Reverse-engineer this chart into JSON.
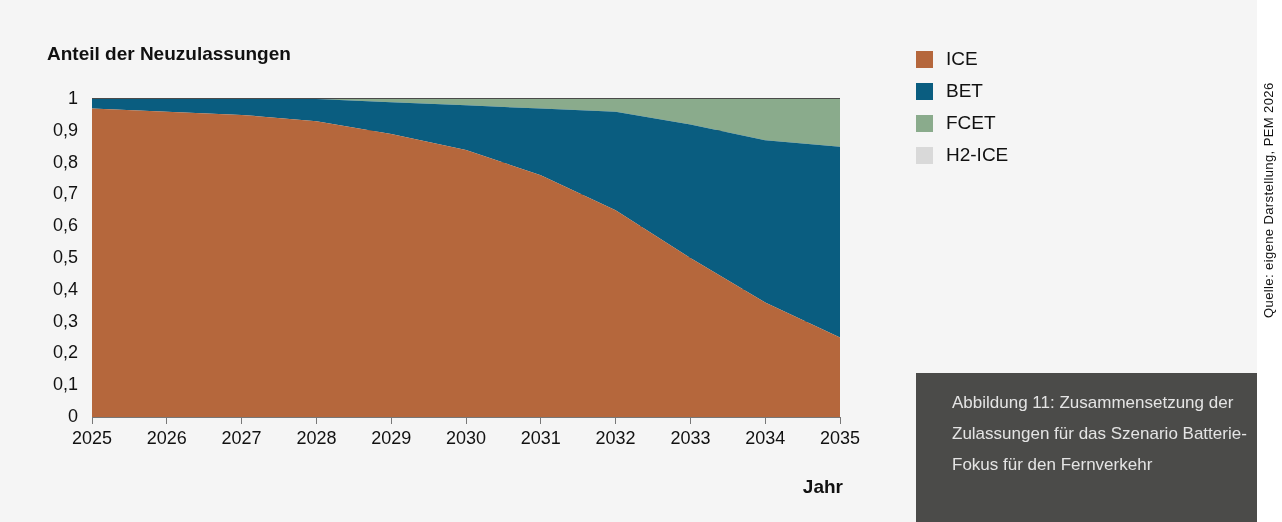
{
  "chart_data": {
    "type": "area",
    "title": "Anteil der Neuzulassungen",
    "xlabel": "Jahr",
    "categories": [
      "2025",
      "2026",
      "2027",
      "2028",
      "2029",
      "2030",
      "2031",
      "2032",
      "2033",
      "2034",
      "2035"
    ],
    "stacked": true,
    "series": [
      {
        "name": "ICE",
        "color": "#b5673c",
        "values": [
          0.97,
          0.96,
          0.95,
          0.93,
          0.89,
          0.84,
          0.76,
          0.65,
          0.5,
          0.36,
          0.25
        ]
      },
      {
        "name": "BET",
        "color": "#0a5d80",
        "values": [
          0.03,
          0.04,
          0.05,
          0.07,
          0.1,
          0.14,
          0.21,
          0.31,
          0.42,
          0.51,
          0.6
        ]
      },
      {
        "name": "FCET",
        "color": "#8aab8c",
        "values": [
          0,
          0,
          0,
          0,
          0.01,
          0.02,
          0.03,
          0.04,
          0.08,
          0.13,
          0.15
        ]
      },
      {
        "name": "H2-ICE",
        "color": "#d9d9d9",
        "values": [
          null,
          null,
          null,
          null,
          null,
          null,
          null,
          null,
          null,
          null,
          null
        ]
      }
    ],
    "ylim": [
      0,
      1
    ],
    "yticks": [
      0,
      {
        "value": 0.1,
        "label": "0,1"
      },
      {
        "value": 0.2,
        "label": "0,2"
      },
      {
        "value": 0.3,
        "label": "0,3"
      },
      {
        "value": 0.4,
        "label": "0,4"
      },
      {
        "value": 0.5,
        "label": "0,5"
      },
      {
        "value": 0.6,
        "label": "0,6"
      },
      {
        "value": 0.7,
        "label": "0,7"
      },
      {
        "value": 0.8,
        "label": "0,8"
      },
      {
        "value": 0.9,
        "label": "0,9"
      },
      1
    ],
    "grid": "y",
    "legend": "right",
    "annotations": [
      "Abbildung 11: Zusammensetzung der Zulassungen für das Szenario Batterie-Fokus für den Fernverkehr",
      "Quelle: eigene Darstellung, PEM 2026"
    ]
  }
}
